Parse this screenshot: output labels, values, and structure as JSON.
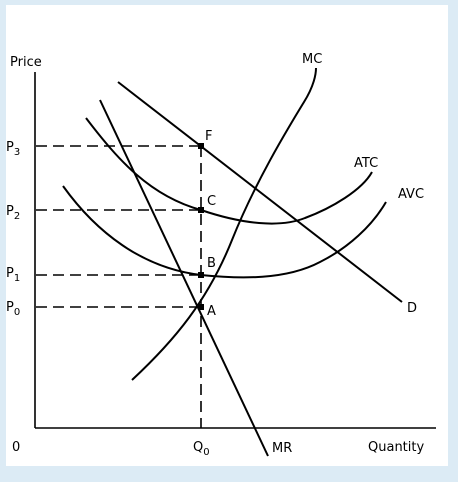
{
  "axes": {
    "y_label": "Price",
    "x_label": "Quantity",
    "origin_label": "0"
  },
  "prices": [
    {
      "base": "P",
      "sub": "3"
    },
    {
      "base": "P",
      "sub": "2"
    },
    {
      "base": "P",
      "sub": "1"
    },
    {
      "base": "P",
      "sub": "0"
    }
  ],
  "quantity": {
    "base": "Q",
    "sub": "0"
  },
  "curves": {
    "mc": "MC",
    "atc": "ATC",
    "avc": "AVC",
    "demand": "D",
    "mr": "MR"
  },
  "points": {
    "f": "F",
    "c": "C",
    "b": "B",
    "a": "A"
  },
  "colors": {
    "background": "#dcebf5",
    "panel": "#ffffff",
    "ink": "#000000"
  }
}
